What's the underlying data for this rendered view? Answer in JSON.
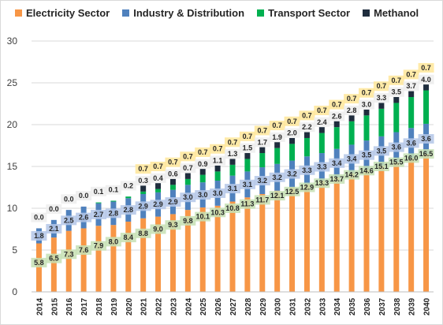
{
  "chart_data": {
    "type": "bar",
    "stacked": true,
    "categories": [
      "2014",
      "2015",
      "2016",
      "2017",
      "2018",
      "2019",
      "2020",
      "2021",
      "2022",
      "2023",
      "2024",
      "2025",
      "2026",
      "2027",
      "2028",
      "2029",
      "2030",
      "2031",
      "2032",
      "2033",
      "2034",
      "2035",
      "2036",
      "2037",
      "2038",
      "2039",
      "2040"
    ],
    "series": [
      {
        "name": "Electricity Sector",
        "color": "#f79646",
        "values": [
          5.8,
          6.5,
          7.3,
          7.6,
          7.9,
          8.0,
          8.4,
          8.8,
          9.0,
          9.3,
          9.8,
          10.1,
          10.3,
          10.8,
          11.3,
          11.7,
          12.1,
          12.5,
          12.9,
          13.3,
          13.7,
          14.2,
          14.6,
          15.1,
          15.5,
          16.0,
          16.5
        ],
        "labels": [
          "5.8",
          "6.5",
          "7.3",
          "7.6",
          "7.9",
          "8.0",
          "8.4",
          "8.8",
          "9.0",
          "9.3",
          "9.8",
          "10.1",
          "10.3",
          "10.8",
          "11.3",
          "11.7",
          "12.1",
          "12.5",
          "12.9",
          "13.3",
          "13.7",
          "14.2",
          "14.6",
          "15.1",
          "15.5",
          "16.0",
          "16.5"
        ]
      },
      {
        "name": "Industry & Distribution",
        "color": "#4f81bd",
        "values": [
          1.8,
          2.1,
          2.5,
          2.6,
          2.7,
          2.8,
          2.8,
          2.9,
          2.9,
          2.9,
          3.0,
          3.0,
          3.0,
          3.1,
          3.1,
          3.2,
          3.2,
          3.2,
          3.3,
          3.3,
          3.4,
          3.4,
          3.5,
          3.5,
          3.6,
          3.6,
          3.6
        ],
        "labels": [
          "1.8",
          "2.1",
          "2.5",
          "2.6",
          "2.7",
          "2.8",
          "2.8",
          "2.9",
          "2.9",
          "2.9",
          "3.0",
          "3.0",
          "3.0",
          "3.1",
          "3.1",
          "3.2",
          "3.2",
          "3.2",
          "3.3",
          "3.3",
          "3.4",
          "3.4",
          "3.5",
          "3.5",
          "3.6",
          "3.6",
          "3.6"
        ]
      },
      {
        "name": "Transport Sector",
        "color": "#00b050",
        "values": [
          0.0,
          0.0,
          0.0,
          0.0,
          0.1,
          0.1,
          0.2,
          0.3,
          0.4,
          0.6,
          0.7,
          0.9,
          1.1,
          1.3,
          1.5,
          1.7,
          1.9,
          2.0,
          2.2,
          2.4,
          2.6,
          2.8,
          3.0,
          3.3,
          3.5,
          3.7,
          4.0
        ],
        "labels": [
          "0.0",
          "0.0",
          "0.0",
          "0.0",
          "0.1",
          "0.1",
          "0.2",
          "0.3",
          "0.4",
          "0.6",
          "0.7",
          "0.9",
          "1.1",
          "1.3",
          "1.5",
          "1.7",
          "1.9",
          "2.0",
          "2.2",
          "2.4",
          "2.6",
          "2.8",
          "3.0",
          "3.3",
          "3.5",
          "3.7",
          "4.0"
        ]
      },
      {
        "name": "Methanol",
        "color": "#1f2d3d",
        "values": [
          0,
          0,
          0,
          0,
          0,
          0,
          0,
          0.7,
          0.7,
          0.7,
          0.7,
          0.7,
          0.7,
          0.7,
          0.7,
          0.7,
          0.7,
          0.7,
          0.7,
          0.7,
          0.7,
          0.7,
          0.7,
          0.7,
          0.7,
          0.7,
          0.7
        ],
        "labels": [
          "",
          "",
          "",
          "",
          "",
          "",
          "",
          "0.7",
          "0.7",
          "0.7",
          "0.7",
          "0.7",
          "0.7",
          "0.7",
          "0.7",
          "0.7",
          "0.7",
          "0.7",
          "0.7",
          "0.7",
          "0.7",
          "0.7",
          "0.7",
          "0.7",
          "0.7",
          "0.7",
          "0.7"
        ]
      }
    ],
    "ylim": [
      0,
      30
    ],
    "yticks": [
      0,
      5,
      10,
      15,
      20,
      25,
      30
    ],
    "grid": true,
    "legend_position": "top-left",
    "title": "",
    "xlabel": "",
    "ylabel": ""
  }
}
